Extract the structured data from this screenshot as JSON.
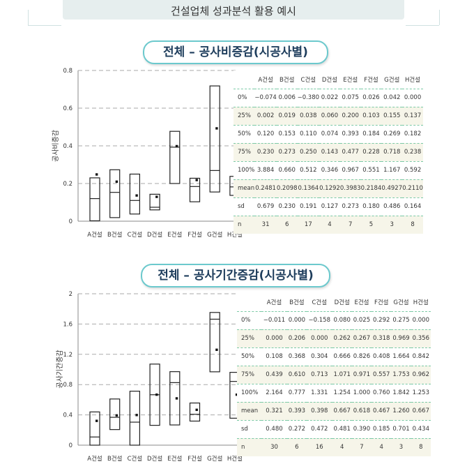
{
  "page": {
    "title": "건설업체 성과분석 활용 예시"
  },
  "colors": {
    "box": "#222222",
    "pill_border": "#6cc9cd",
    "pill_text": "#1e3d5c",
    "table_line": "#7bc9a6",
    "row_shade": "#f6f5e9"
  },
  "chart_data": [
    {
      "type": "box",
      "title": "전체 – 공사비증감(시공사별)",
      "ylabel": "공사비증감",
      "ylim": [
        0,
        0.8
      ],
      "yticks": [
        "0",
        "0.2",
        "0.4",
        "0.6",
        "0.8"
      ],
      "grid": "dashed horizontal",
      "categories": [
        "A건설",
        "B건설",
        "C건설",
        "D건설",
        "E건설",
        "F건설",
        "G건설",
        "H건설"
      ],
      "table": {
        "header": [
          "",
          "A건설",
          "B건설",
          "C건설",
          "D건설",
          "E건설",
          "F건설",
          "G건설",
          "H건설"
        ],
        "rows": [
          [
            "0%",
            "−0.074",
            "0.006",
            "−0.380",
            "0.022",
            "0.075",
            "0.026",
            "0.042",
            "0.000"
          ],
          [
            "25%",
            "0.002",
            "0.019",
            "0.038",
            "0.060",
            "0.200",
            "0.103",
            "0.155",
            "0.137"
          ],
          [
            "50%",
            "0.120",
            "0.153",
            "0.110",
            "0.074",
            "0.393",
            "0.184",
            "0.269",
            "0.182"
          ],
          [
            "75%",
            "0.230",
            "0.273",
            "0.250",
            "0.143",
            "0.477",
            "0.228",
            "0.718",
            "0.238"
          ],
          [
            "100%",
            "3.884",
            "0.660",
            "0.512",
            "0.346",
            "0.967",
            "0.551",
            "1.167",
            "0.592"
          ],
          [
            "mean",
            "0.2481",
            "0.2098",
            "0.1364",
            "0.1292",
            "0.3983",
            "0.2184",
            "0.4927",
            "0.2110"
          ],
          [
            "sd",
            "0.679",
            "0.230",
            "0.191",
            "0.127",
            "0.273",
            "0.180",
            "0.486",
            "0.164"
          ],
          [
            "n",
            "31",
            "6",
            "17",
            "4",
            "7",
            "5",
            "3",
            "8"
          ]
        ]
      },
      "boxes": [
        {
          "q1": 0.002,
          "median": 0.12,
          "q3": 0.23,
          "mean": 0.2481
        },
        {
          "q1": 0.019,
          "median": 0.153,
          "q3": 0.273,
          "mean": 0.2098
        },
        {
          "q1": 0.038,
          "median": 0.11,
          "q3": 0.25,
          "mean": 0.1364
        },
        {
          "q1": 0.06,
          "median": 0.074,
          "q3": 0.143,
          "mean": 0.1292
        },
        {
          "q1": 0.2,
          "median": 0.393,
          "q3": 0.477,
          "mean": 0.3983
        },
        {
          "q1": 0.103,
          "median": 0.184,
          "q3": 0.228,
          "mean": 0.2184
        },
        {
          "q1": 0.155,
          "median": 0.269,
          "q3": 0.718,
          "mean": 0.4927
        },
        {
          "q1": 0.137,
          "median": 0.182,
          "q3": 0.238,
          "mean": 0.211
        }
      ]
    },
    {
      "type": "box",
      "title": "전체 – 공사기간증감(시공사별)",
      "ylabel": "공사기간증감",
      "ylim": [
        0,
        2
      ],
      "yticks": [
        "0",
        "0.4",
        "0.8",
        "1.2",
        "1.6",
        "2"
      ],
      "grid": "dashed horizontal",
      "categories": [
        "A건설",
        "B건설",
        "C건설",
        "D건설",
        "E건설",
        "F건설",
        "G건설",
        "H건설"
      ],
      "table": {
        "header": [
          "",
          "A건설",
          "B건설",
          "C건설",
          "D건설",
          "E건설",
          "F건설",
          "G건설",
          "H건설"
        ],
        "rows": [
          [
            "0%",
            "−0.011",
            "0.000",
            "−0.158",
            "0.080",
            "0.025",
            "0.292",
            "0.275",
            "0.000"
          ],
          [
            "25%",
            "0.000",
            "0.206",
            "0.000",
            "0.262",
            "0.267",
            "0.318",
            "0.969",
            "0.356"
          ],
          [
            "50%",
            "0.108",
            "0.368",
            "0.304",
            "0.666",
            "0.826",
            "0.408",
            "1.664",
            "0.842"
          ],
          [
            "75%",
            "0.439",
            "0.610",
            "0.713",
            "1.071",
            "0.971",
            "0.557",
            "1.753",
            "0.962"
          ],
          [
            "100%",
            "2.164",
            "0.777",
            "1.331",
            "1.254",
            "1.000",
            "0.760",
            "1.842",
            "1.253"
          ],
          [
            "mean",
            "0.321",
            "0.393",
            "0.398",
            "0.667",
            "0.618",
            "0.467",
            "1.260",
            "0.667"
          ],
          [
            "sd",
            "0.480",
            "0.272",
            "0.472",
            "0.481",
            "0.390",
            "0.185",
            "0.701",
            "0.434"
          ],
          [
            "n",
            "30",
            "6",
            "16",
            "4",
            "7",
            "4",
            "3",
            "8"
          ]
        ]
      },
      "boxes": [
        {
          "q1": 0.0,
          "median": 0.108,
          "q3": 0.439,
          "mean": 0.321
        },
        {
          "q1": 0.206,
          "median": 0.368,
          "q3": 0.61,
          "mean": 0.393
        },
        {
          "q1": 0.0,
          "median": 0.304,
          "q3": 0.713,
          "mean": 0.398
        },
        {
          "q1": 0.262,
          "median": 0.666,
          "q3": 1.071,
          "mean": 0.667
        },
        {
          "q1": 0.267,
          "median": 0.826,
          "q3": 0.971,
          "mean": 0.618
        },
        {
          "q1": 0.318,
          "median": 0.408,
          "q3": 0.557,
          "mean": 0.467
        },
        {
          "q1": 0.969,
          "median": 1.664,
          "q3": 1.753,
          "mean": 1.26
        },
        {
          "q1": 0.356,
          "median": 0.842,
          "q3": 0.962,
          "mean": 0.667
        }
      ]
    }
  ]
}
